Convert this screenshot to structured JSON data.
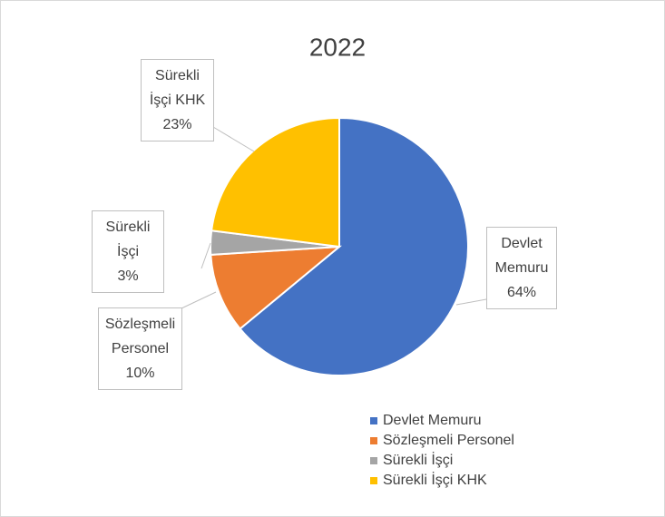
{
  "chart_data": {
    "type": "pie",
    "title": "2022",
    "categories": [
      "Devlet Memuru",
      "Sözleşmeli Personel",
      "Sürekli İşçi",
      "Sürekli İşçi KHK"
    ],
    "values": [
      64,
      10,
      3,
      23
    ],
    "value_labels": [
      "64%",
      "10%",
      "3%",
      "23%"
    ],
    "colors": [
      "#4472c4",
      "#ed7d31",
      "#a5a5a5",
      "#ffc000"
    ],
    "legend": "bottom-right"
  }
}
